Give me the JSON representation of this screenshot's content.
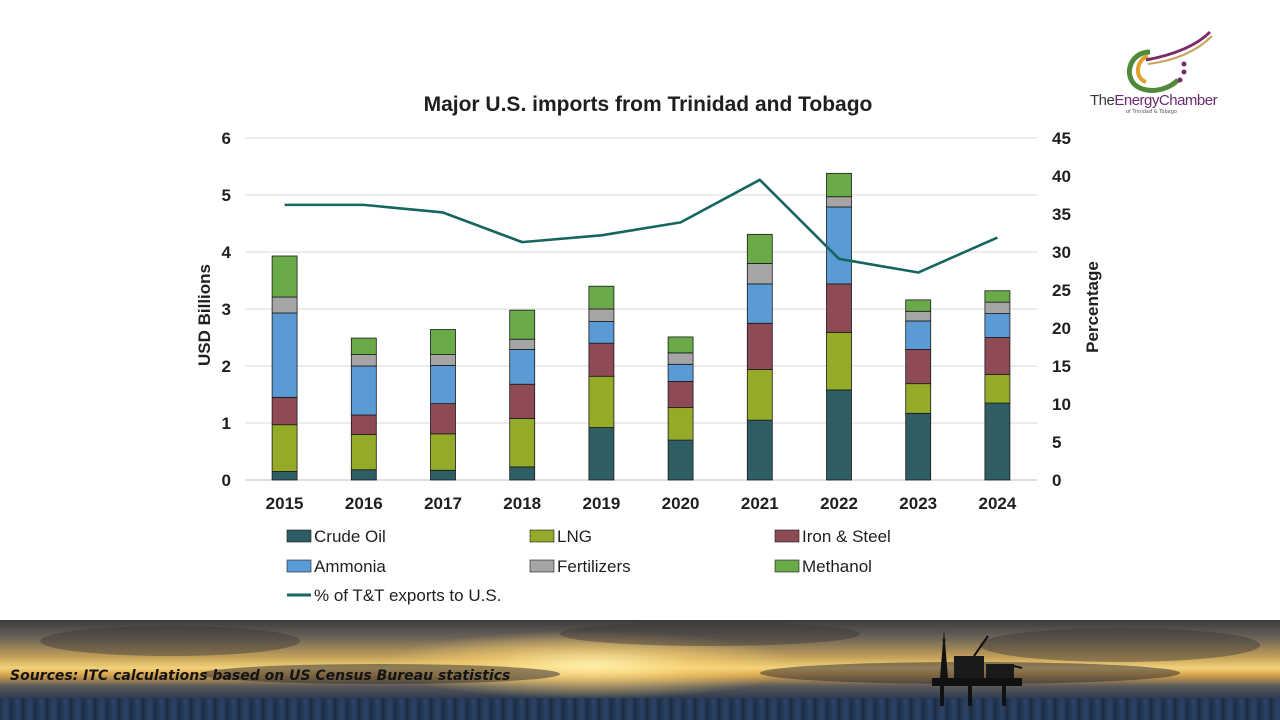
{
  "logo": {
    "the": "The",
    "energy": "Energy",
    "chamber": "Chamber",
    "sub": "of Trinidad & Tobago"
  },
  "sources": "Sources: ITC calculations based on US Census Bureau statistics",
  "colors": {
    "crude_oil": "#2e5e63",
    "lng": "#94ab2a",
    "iron_steel": "#8e4a55",
    "ammonia": "#5b9bd5",
    "fertilizers": "#a5a5a5",
    "methanol": "#6aaa48",
    "line": "#17655f"
  },
  "chart_data": {
    "type": "bar",
    "stacked": true,
    "title": "Major U.S. imports from Trinidad and Tobago",
    "ylabel": "USD Billions",
    "y2label": "Percentage",
    "ylim": [
      0,
      6
    ],
    "y2lim": [
      0,
      45
    ],
    "yticks": [
      "0",
      "1",
      "2",
      "3",
      "4",
      "5",
      "6"
    ],
    "y2ticks": [
      "0",
      "5",
      "10",
      "15",
      "20",
      "25",
      "30",
      "35",
      "40",
      "45"
    ],
    "grid": true,
    "legend_placement": "bottom",
    "categories": [
      "2015",
      "2016",
      "2017",
      "2018",
      "2019",
      "2020",
      "2021",
      "2022",
      "2023",
      "2024"
    ],
    "series": [
      {
        "name": "Crude Oil",
        "key": "crude_oil",
        "values": [
          0.15,
          0.18,
          0.17,
          0.23,
          0.92,
          0.7,
          1.05,
          1.58,
          1.17,
          1.35
        ]
      },
      {
        "name": "LNG",
        "key": "lng",
        "values": [
          0.82,
          0.62,
          0.64,
          0.85,
          0.9,
          0.57,
          0.89,
          1.01,
          0.52,
          0.5
        ]
      },
      {
        "name": "Iron & Steel",
        "key": "iron_steel",
        "values": [
          0.48,
          0.34,
          0.53,
          0.6,
          0.58,
          0.46,
          0.81,
          0.85,
          0.6,
          0.65
        ]
      },
      {
        "name": "Ammonia",
        "key": "ammonia",
        "values": [
          1.48,
          0.86,
          0.67,
          0.61,
          0.38,
          0.3,
          0.69,
          1.35,
          0.5,
          0.42
        ]
      },
      {
        "name": "Fertilizers",
        "key": "fertilizers",
        "values": [
          0.28,
          0.2,
          0.19,
          0.18,
          0.22,
          0.2,
          0.36,
          0.18,
          0.17,
          0.2
        ]
      },
      {
        "name": "Methanol",
        "key": "methanol",
        "values": [
          0.72,
          0.29,
          0.44,
          0.51,
          0.4,
          0.28,
          0.51,
          0.41,
          0.2,
          0.2
        ]
      }
    ],
    "line_series": {
      "name": "% of T&T exports to U.S.",
      "axis": "y2",
      "values": [
        36.2,
        36.2,
        35.2,
        31.3,
        32.2,
        33.9,
        39.5,
        29.1,
        27.3,
        31.9
      ]
    }
  }
}
